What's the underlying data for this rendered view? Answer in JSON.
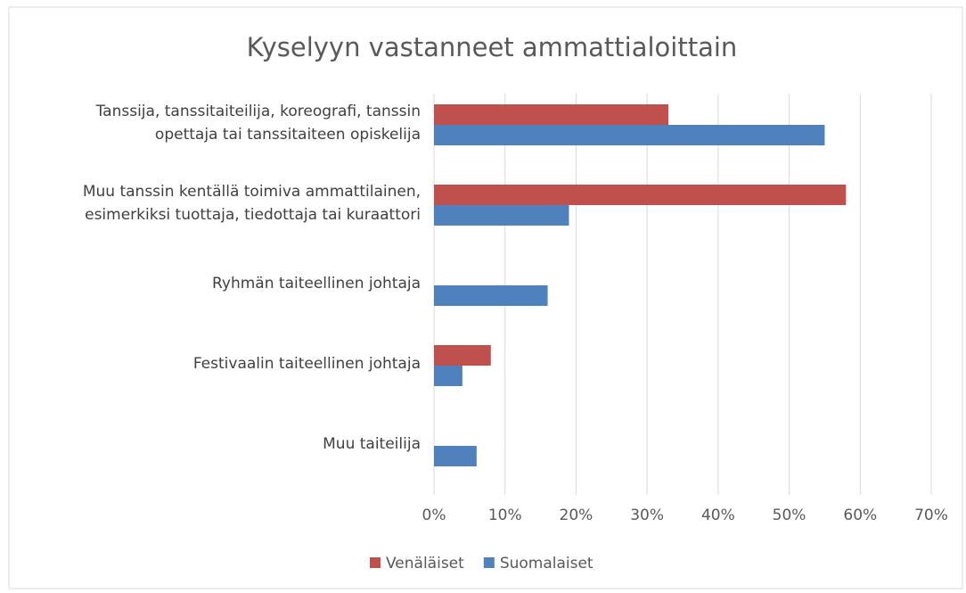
{
  "chart_data": {
    "type": "hbar",
    "title": "Kyselyyn vastanneet ammattialoittain",
    "categories": [
      "Tanssija, tanssitaiteilija, koreografi, tanssin\nopettaja tai tanssitaiteen opiskelija",
      "Muu tanssin kentällä toimiva ammattilainen,\nesimerkiksi tuottaja, tiedottaja tai kuraattori",
      "Ryhmän taiteellinen johtaja",
      "Festivaalin taiteellinen johtaja",
      "Muu taiteilija"
    ],
    "series": [
      {
        "name": "Venäläiset",
        "color": "#c0504d",
        "values": [
          33,
          58,
          0,
          8,
          0
        ]
      },
      {
        "name": "Suomalaiset",
        "color": "#4f81bd",
        "values": [
          55,
          19,
          16,
          4,
          6
        ]
      }
    ],
    "xlim": [
      0,
      70
    ],
    "xticks": [
      {
        "value": 0,
        "label": "0%"
      },
      {
        "value": 10,
        "label": "10%"
      },
      {
        "value": 20,
        "label": "20%"
      },
      {
        "value": 30,
        "label": "30%"
      },
      {
        "value": 40,
        "label": "40%"
      },
      {
        "value": 50,
        "label": "50%"
      },
      {
        "value": 60,
        "label": "60%"
      },
      {
        "value": 70,
        "label": "70%"
      }
    ],
    "grid": true,
    "legend": "bottom"
  }
}
